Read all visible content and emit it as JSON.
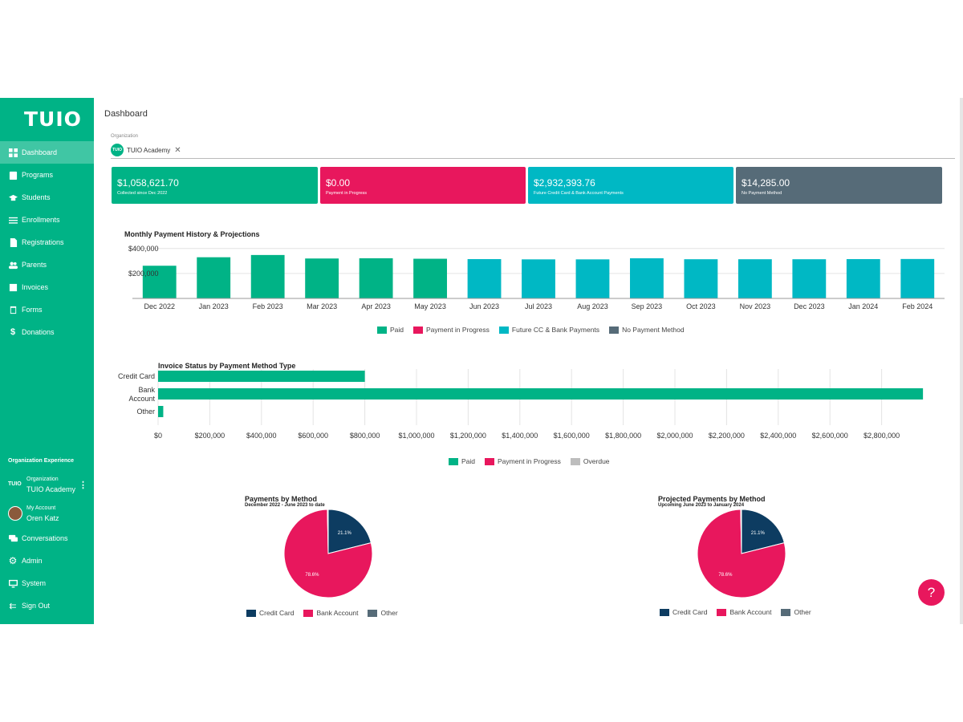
{
  "sidebar": {
    "logo": "TUIO",
    "items": [
      {
        "label": "Dashboard",
        "icon": "dashboard-icon",
        "active": true
      },
      {
        "label": "Programs",
        "icon": "clipboard-icon"
      },
      {
        "label": "Students",
        "icon": "graduation-cap-icon"
      },
      {
        "label": "Enrollments",
        "icon": "list-icon"
      },
      {
        "label": "Registrations",
        "icon": "document-icon"
      },
      {
        "label": "Parents",
        "icon": "people-icon"
      },
      {
        "label": "Invoices",
        "icon": "invoice-icon"
      },
      {
        "label": "Forms",
        "icon": "forms-icon"
      },
      {
        "label": "Donations",
        "icon": "dollar-icon"
      }
    ],
    "org_experience_label": "Organization Experience",
    "org": {
      "mini_logo": "TUIO",
      "label": "Organization",
      "name": "TUIO Academy"
    },
    "account": {
      "label": "My Account",
      "name": "Oren Katz"
    },
    "bottom_items": [
      {
        "label": "Conversations",
        "icon": "chat-icon"
      },
      {
        "label": "Admin",
        "icon": "gear-icon"
      },
      {
        "label": "System",
        "icon": "monitor-icon"
      },
      {
        "label": "Sign Out",
        "icon": "sign-out-icon"
      }
    ]
  },
  "main": {
    "title": "Dashboard",
    "org_field": {
      "label": "Organization",
      "chip_logo": "TUIO",
      "value": "TUIO Academy",
      "clear": "✕"
    },
    "stats": [
      {
        "value": "$1,058,621.70",
        "sub": "Collected since Dec 2022",
        "color": "#00b386"
      },
      {
        "value": "$0.00",
        "sub": "Payment in Progress",
        "color": "#e8175d"
      },
      {
        "value": "$2,932,393.76",
        "sub": "Future Credit Card & Bank Account Payments",
        "color": "#00b8c4"
      },
      {
        "value": "$14,285.00",
        "sub": "No Payment Method",
        "color": "#566b78"
      }
    ],
    "help_label": "?"
  },
  "colors": {
    "paid": "#00b386",
    "in_progress": "#e8175d",
    "future": "#00b8c4",
    "no_method": "#566b78",
    "overdue": "#bdbdbd",
    "credit_card": "#0d3c61",
    "bank_account": "#e8175d",
    "other": "#566b78"
  },
  "chart_data": [
    {
      "type": "bar",
      "title": "Monthly Payment History & Projections",
      "categories": [
        "Dec 2022",
        "Jan 2023",
        "Feb 2023",
        "Mar 2023",
        "Apr 2023",
        "May 2023",
        "Jun 2023",
        "Jul 2023",
        "Aug 2023",
        "Sep 2023",
        "Oct 2023",
        "Nov 2023",
        "Dec 2023",
        "Jan 2024",
        "Feb 2024"
      ],
      "stacked": true,
      "series": [
        {
          "name": "Paid",
          "values": [
            262000,
            330000,
            348000,
            320000,
            322000,
            318000,
            0,
            0,
            0,
            0,
            0,
            0,
            0,
            0,
            0
          ]
        },
        {
          "name": "Payment in Progress",
          "values": [
            0,
            0,
            0,
            0,
            0,
            0,
            0,
            0,
            0,
            0,
            0,
            0,
            0,
            0,
            0
          ]
        },
        {
          "name": "Future CC & Bank Payments",
          "values": [
            0,
            0,
            0,
            0,
            0,
            0,
            315000,
            313000,
            313000,
            322000,
            314000,
            314000,
            314000,
            315000,
            316000
          ]
        },
        {
          "name": "No Payment Method",
          "values": [
            0,
            0,
            0,
            0,
            0,
            0,
            0,
            0,
            0,
            0,
            0,
            0,
            0,
            0,
            0
          ]
        }
      ],
      "y_ticks": [
        "$200,000",
        "$400,000"
      ],
      "ylim": [
        0,
        450000
      ],
      "legend": "bottom"
    },
    {
      "type": "bar",
      "orientation": "horizontal",
      "title": "Invoice Status by Payment Method Type",
      "categories": [
        "Credit Card",
        "Bank Account",
        "Other"
      ],
      "stacked": true,
      "series": [
        {
          "name": "Paid",
          "values": [
            800000,
            2960000,
            20000
          ]
        },
        {
          "name": "Payment in Progress",
          "values": [
            0,
            0,
            0
          ]
        },
        {
          "name": "Overdue",
          "values": [
            0,
            0,
            0
          ]
        }
      ],
      "x_ticks": [
        "$0",
        "$200,000",
        "$400,000",
        "$600,000",
        "$800,000",
        "$1,000,000",
        "$1,200,000",
        "$1,400,000",
        "$1,600,000",
        "$1,800,000",
        "$2,000,000",
        "$2,200,000",
        "$2,400,000",
        "$2,600,000",
        "$2,800,000"
      ],
      "xlim": [
        0,
        3000000
      ],
      "legend": "bottom"
    },
    {
      "type": "pie",
      "title": "Payments by Method",
      "subtitle": "December 2022 - June 2023 to date",
      "categories": [
        "Credit Card",
        "Bank Account",
        "Other"
      ],
      "values": [
        21.1,
        78.6,
        0.3
      ],
      "labels": [
        "21.1%",
        "78.6%",
        ""
      ],
      "legend": "bottom"
    },
    {
      "type": "pie",
      "title": "Projected Payments by Method",
      "subtitle": "Upcoming June 2023 to January 2024",
      "categories": [
        "Credit Card",
        "Bank Account",
        "Other"
      ],
      "values": [
        21.1,
        78.6,
        0.3
      ],
      "labels": [
        "21.1%",
        "78.6%",
        ""
      ],
      "legend": "bottom"
    }
  ]
}
